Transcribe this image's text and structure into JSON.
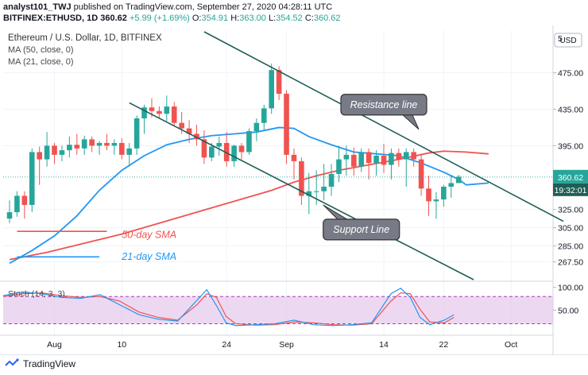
{
  "header": {
    "line1_author": "analyst101_TWJ",
    "line1_rest": "published on TradingView.com, September 27, 2020 04:28:11 UTC",
    "line2_symbol": "BITFINEX:ETHUSD, 1D",
    "line2_price": "360.62",
    "line2_change": "+5.99 (+1.69%)",
    "o_label": "O:",
    "o_value": "354.91",
    "h_label": "H:",
    "h_value": "363.00",
    "l_label": "L:",
    "l_value": "354.52",
    "c_label": "C:",
    "c_value": "360.62"
  },
  "legend": {
    "title": "Ethereum / U.S. Dollar, 1D, BITFINEX",
    "ma50": "MA (50, close, 0)",
    "ma21": "MA (21, close, 0)"
  },
  "footer": {
    "brand": "TradingView"
  },
  "colors": {
    "up": "#26a69a",
    "down": "#ef5350",
    "ma50": "#ef5350",
    "ma21": "#2196f3",
    "trendline": "#1e5e55",
    "stoch_band": "#e1bee7",
    "stoch_k": "#2196f3",
    "stoch_d": "#ef5350",
    "label_fill": "#787b86",
    "price_tag": "#26a69a",
    "countdown_tag": "#1e5e55"
  },
  "chart_data": {
    "type": "candlestick",
    "currency_label": "USD",
    "price_axis": {
      "min": 248,
      "max": 520,
      "ticks": [
        475.0,
        435.0,
        395.0,
        360.62,
        325.0,
        305.0,
        285.0,
        267.5
      ],
      "tick_labels": [
        "475.00",
        "435.00",
        "395.00",
        "325.00",
        "305.00",
        "285.00",
        "267.50"
      ]
    },
    "last_price_label": "360.62",
    "countdown_label": "19:32:01",
    "x_axis": {
      "first_day": 0,
      "ticks": [
        {
          "label": "Aug",
          "day": 6
        },
        {
          "label": "10",
          "day": 15
        },
        {
          "label": "24",
          "day": 29
        },
        {
          "label": "Sep",
          "day": 37
        },
        {
          "label": "14",
          "day": 50
        },
        {
          "label": "22",
          "day": 58
        },
        {
          "label": "Oct",
          "day": 67
        }
      ]
    },
    "candles": [
      [
        315,
        335,
        310,
        322
      ],
      [
        322,
        345,
        317,
        340
      ],
      [
        340,
        345,
        315,
        330
      ],
      [
        330,
        392,
        322,
        388
      ],
      [
        388,
        394,
        352,
        380
      ],
      [
        380,
        410,
        372,
        395
      ],
      [
        395,
        398,
        375,
        385
      ],
      [
        385,
        395,
        378,
        390
      ],
      [
        390,
        405,
        382,
        396
      ],
      [
        396,
        408,
        385,
        392
      ],
      [
        392,
        406,
        385,
        402
      ],
      [
        402,
        405,
        388,
        395
      ],
      [
        395,
        400,
        385,
        398
      ],
      [
        398,
        408,
        390,
        395
      ],
      [
        395,
        402,
        385,
        398
      ],
      [
        398,
        403,
        380,
        385
      ],
      [
        385,
        398,
        372,
        392
      ],
      [
        392,
        428,
        385,
        425
      ],
      [
        425,
        440,
        408,
        437
      ],
      [
        437,
        447,
        426,
        433
      ],
      [
        433,
        438,
        425,
        430
      ],
      [
        430,
        450,
        422,
        438
      ],
      [
        438,
        443,
        417,
        420
      ],
      [
        420,
        432,
        408,
        414
      ],
      [
        414,
        423,
        398,
        408
      ],
      [
        408,
        418,
        395,
        402
      ],
      [
        402,
        412,
        375,
        382
      ],
      [
        382,
        398,
        378,
        394
      ],
      [
        394,
        405,
        384,
        398
      ],
      [
        398,
        410,
        372,
        378
      ],
      [
        378,
        396,
        372,
        395
      ],
      [
        395,
        398,
        380,
        388
      ],
      [
        388,
        414,
        385,
        411
      ],
      [
        411,
        425,
        400,
        420
      ],
      [
        420,
        440,
        412,
        436
      ],
      [
        436,
        485,
        430,
        478
      ],
      [
        478,
        482,
        445,
        452
      ],
      [
        452,
        456,
        375,
        385
      ],
      [
        385,
        392,
        358,
        378
      ],
      [
        378,
        382,
        330,
        340
      ],
      [
        340,
        365,
        320,
        345
      ],
      [
        345,
        368,
        330,
        345
      ],
      [
        345,
        375,
        335,
        350
      ],
      [
        350,
        375,
        340,
        364
      ],
      [
        364,
        395,
        355,
        380
      ],
      [
        380,
        395,
        362,
        385
      ],
      [
        385,
        393,
        362,
        372
      ],
      [
        372,
        392,
        366,
        388
      ],
      [
        388,
        392,
        358,
        376
      ],
      [
        376,
        390,
        362,
        384
      ],
      [
        384,
        397,
        365,
        374
      ],
      [
        374,
        392,
        358,
        387
      ],
      [
        387,
        392,
        372,
        380
      ],
      [
        380,
        392,
        350,
        388
      ],
      [
        388,
        392,
        372,
        380
      ],
      [
        380,
        386,
        340,
        348
      ],
      [
        348,
        362,
        318,
        334
      ],
      [
        334,
        344,
        315,
        336
      ],
      [
        336,
        352,
        328,
        350
      ],
      [
        350,
        363,
        338,
        354
      ],
      [
        354,
        363,
        354,
        361
      ]
    ],
    "ma50": [
      [
        0,
        270
      ],
      [
        5,
        278
      ],
      [
        10,
        288
      ],
      [
        15,
        298
      ],
      [
        20,
        310
      ],
      [
        25,
        322
      ],
      [
        30,
        334
      ],
      [
        35,
        346
      ],
      [
        38,
        355
      ],
      [
        41,
        362
      ],
      [
        44,
        368
      ],
      [
        48,
        374
      ],
      [
        52,
        380
      ],
      [
        56,
        387
      ],
      [
        58,
        389
      ],
      [
        61,
        388
      ],
      [
        64,
        386
      ]
    ],
    "ma21": [
      [
        0,
        266
      ],
      [
        3,
        280
      ],
      [
        6,
        296
      ],
      [
        9,
        318
      ],
      [
        12,
        346
      ],
      [
        15,
        368
      ],
      [
        18,
        384
      ],
      [
        21,
        396
      ],
      [
        24,
        402
      ],
      [
        27,
        406
      ],
      [
        30,
        408
      ],
      [
        33,
        410
      ],
      [
        36,
        415
      ],
      [
        38,
        414
      ],
      [
        40,
        405
      ],
      [
        43,
        396
      ],
      [
        46,
        388
      ],
      [
        49,
        386
      ],
      [
        52,
        384
      ],
      [
        55,
        376
      ],
      [
        58,
        366
      ],
      [
        60,
        358
      ],
      [
        61,
        352
      ],
      [
        64,
        354
      ]
    ],
    "resistance_line": [
      [
        26,
        520
      ],
      [
        74,
        312
      ]
    ],
    "support_line": [
      [
        16,
        442
      ],
      [
        62,
        248
      ]
    ],
    "annotations": [
      {
        "text": "Resistance line",
        "day": 50,
        "price": 440
      },
      {
        "text": "Support Line",
        "day": 47,
        "price": 303
      },
      {
        "text": "50-day SMA",
        "day": 15,
        "price": 298
      },
      {
        "text": "21-day SMA",
        "day": 15,
        "price": 274
      }
    ],
    "sma_label_lines": [
      {
        "name": "50-day",
        "from_day": 1,
        "to_day": 13,
        "price": 301
      },
      {
        "name": "21-day",
        "from_day": 1,
        "to_day": 12,
        "price": 273
      }
    ],
    "stoch": {
      "label": "Stoch (14, 3, 3)",
      "axis": {
        "min": 0,
        "max": 110,
        "ticks": [
          100.0,
          50.0
        ],
        "tick_labels": [
          "100.00",
          "50.00"
        ]
      },
      "band": [
        20,
        80
      ],
      "k": [
        [
          0,
          82
        ],
        [
          4,
          90
        ],
        [
          8,
          86
        ],
        [
          12,
          78
        ],
        [
          16,
          76
        ],
        [
          20,
          84
        ],
        [
          24,
          62
        ],
        [
          28,
          40
        ],
        [
          32,
          30
        ],
        [
          36,
          26
        ],
        [
          40,
          72
        ],
        [
          42,
          95
        ],
        [
          44,
          60
        ],
        [
          46,
          22
        ],
        [
          48,
          16
        ],
        [
          52,
          18
        ],
        [
          56,
          20
        ],
        [
          60,
          28
        ],
        [
          64,
          18
        ],
        [
          68,
          16
        ],
        [
          72,
          18
        ],
        [
          76,
          22
        ],
        [
          80,
          86
        ],
        [
          82,
          98
        ],
        [
          84,
          78
        ],
        [
          86,
          34
        ],
        [
          88,
          18
        ],
        [
          91,
          28
        ],
        [
          93,
          40
        ]
      ],
      "d": [
        [
          0,
          80
        ],
        [
          4,
          86
        ],
        [
          8,
          88
        ],
        [
          12,
          82
        ],
        [
          16,
          78
        ],
        [
          20,
          80
        ],
        [
          24,
          70
        ],
        [
          28,
          46
        ],
        [
          32,
          34
        ],
        [
          36,
          28
        ],
        [
          40,
          62
        ],
        [
          42,
          86
        ],
        [
          44,
          78
        ],
        [
          46,
          36
        ],
        [
          48,
          20
        ],
        [
          52,
          17
        ],
        [
          56,
          18
        ],
        [
          60,
          24
        ],
        [
          64,
          22
        ],
        [
          68,
          18
        ],
        [
          72,
          17
        ],
        [
          76,
          20
        ],
        [
          80,
          70
        ],
        [
          82,
          88
        ],
        [
          84,
          86
        ],
        [
          86,
          52
        ],
        [
          88,
          24
        ],
        [
          91,
          22
        ],
        [
          93,
          34
        ]
      ]
    }
  }
}
